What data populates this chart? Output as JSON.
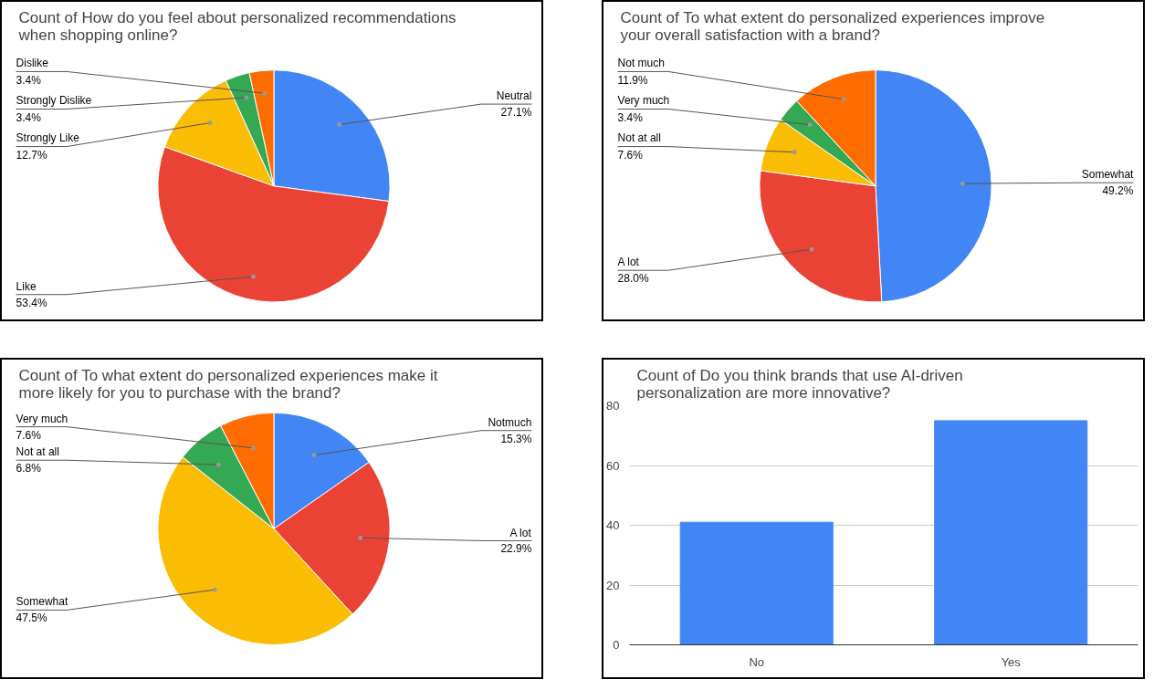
{
  "chart_data": [
    {
      "type": "pie",
      "title": "Count of How do you feel about personalized recommendations when shopping online?",
      "categories": [
        "Neutral",
        "Like",
        "Strongly Like",
        "Strongly Dislike",
        "Dislike"
      ],
      "values": [
        27.1,
        53.4,
        12.7,
        3.4,
        3.4
      ],
      "value_labels": [
        "27.1%",
        "53.4%",
        "12.7%",
        "3.4%",
        "3.4%"
      ],
      "colors": [
        "#4285f4",
        "#ea4335",
        "#fbbc04",
        "#34a853",
        "#ff6d01"
      ]
    },
    {
      "type": "pie",
      "title": "Count of To what extent do personalized experiences improve your overall satisfaction with a brand?",
      "categories": [
        "Somewhat",
        "A lot",
        "Not at all",
        "Very much",
        "Not much"
      ],
      "values": [
        49.2,
        28.0,
        7.6,
        3.4,
        11.9
      ],
      "value_labels": [
        "49.2%",
        "28.0%",
        "7.6%",
        "3.4%",
        "11.9%"
      ],
      "colors": [
        "#4285f4",
        "#ea4335",
        "#fbbc04",
        "#34a853",
        "#ff6d01"
      ]
    },
    {
      "type": "pie",
      "title": "Count of To what extent do personalized experiences make it more likely for you to purchase with the brand?",
      "categories": [
        "Notmuch",
        "A lot",
        "Somewhat",
        "Not at all",
        "Very much"
      ],
      "values": [
        15.3,
        22.9,
        47.5,
        6.8,
        7.6
      ],
      "value_labels": [
        "15.3%",
        "22.9%",
        "47.5%",
        "6.8%",
        "7.6%"
      ],
      "colors": [
        "#4285f4",
        "#ea4335",
        "#fbbc04",
        "#34a853",
        "#ff6d01"
      ]
    },
    {
      "type": "bar",
      "title": "Count of Do you think brands that use AI-driven personalization are more innovative?",
      "categories": [
        "No",
        "Yes"
      ],
      "values": [
        41,
        75
      ],
      "color": "#4285f4",
      "ylim": [
        0,
        80
      ],
      "yticks": [
        0,
        20,
        40,
        60,
        80
      ],
      "grid": "y"
    }
  ]
}
